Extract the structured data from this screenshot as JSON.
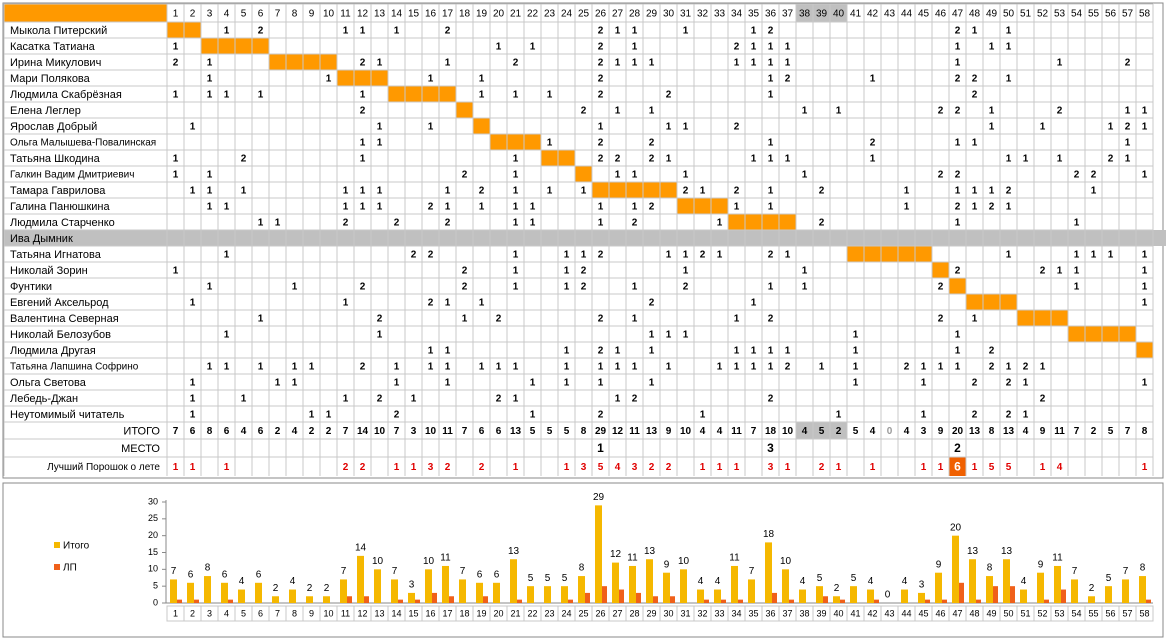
{
  "table": {
    "columns": [
      1,
      2,
      3,
      4,
      5,
      6,
      7,
      8,
      9,
      10,
      11,
      12,
      13,
      14,
      15,
      16,
      17,
      18,
      19,
      20,
      21,
      22,
      23,
      24,
      25,
      26,
      27,
      28,
      29,
      30,
      31,
      32,
      33,
      34,
      35,
      36,
      37,
      38,
      39,
      40,
      41,
      42,
      43,
      44,
      45,
      46,
      47,
      48,
      49,
      50,
      51,
      52,
      53,
      54,
      55,
      56,
      57,
      58
    ],
    "own_color": "#ff9900",
    "rows": [
      {
        "name": "Мыкола Питерский",
        "own": [
          1,
          2
        ],
        "votes": {
          "4": 1,
          "6": 2,
          "11": 1,
          "12": 1,
          "14": 1,
          "17": 2,
          "26": 2,
          "27": 1,
          "28": 1,
          "31": 1,
          "35": 1,
          "36": 2,
          "47": 2,
          "48": 1,
          "50": 1
        }
      },
      {
        "name": "Касатка Татиана",
        "own": [
          3,
          6
        ],
        "votes": {
          "1": 1,
          "20": 1,
          "22": 1,
          "26": 2,
          "28": 1,
          "34": 2,
          "35": 1,
          "36": 1,
          "37": 1,
          "47": 1,
          "49": 1,
          "50": 1
        }
      },
      {
        "name": "Ирина Микулович",
        "own": [
          7,
          10
        ],
        "votes": {
          "1": 2,
          "3": 1,
          "12": 2,
          "13": 1,
          "17": 1,
          "21": 2,
          "26": 2,
          "27": 1,
          "28": 1,
          "29": 1,
          "34": 1,
          "35": 1,
          "36": 1,
          "37": 1,
          "47": 1,
          "53": 1,
          "57": 2
        }
      },
      {
        "name": "Мари Полякова",
        "own": [
          11,
          13
        ],
        "votes": {
          "3": 1,
          "10": 1,
          "16": 1,
          "19": 1,
          "26": 2,
          "36": 1,
          "37": 2,
          "42": 1,
          "47": 2,
          "48": 2,
          "50": 1
        }
      },
      {
        "name": "Людмила Скабрёзная",
        "own": [
          14,
          17
        ],
        "votes": {
          "1": 1,
          "3": 1,
          "4": 1,
          "6": 1,
          "12": 1,
          "19": 1,
          "21": 1,
          "23": 1,
          "26": 2,
          "30": 2,
          "36": 1,
          "48": 2
        }
      },
      {
        "name": "Елена Леглер",
        "own": [
          18,
          18
        ],
        "votes": {
          "12": 2,
          "25": 2,
          "27": 1,
          "29": 1,
          "38": 1,
          "40": 1,
          "46": 2,
          "47": 2,
          "49": 1,
          "53": 2,
          "57": 1,
          "58": 1
        }
      },
      {
        "name": "Ярослав Добрый",
        "own": [
          19,
          19
        ],
        "votes": {
          "2": 1,
          "13": 1,
          "16": 1,
          "26": 1,
          "30": 1,
          "31": 1,
          "34": 2,
          "49": 1,
          "52": 1,
          "56": 1,
          "57": 2,
          "58": 1
        }
      },
      {
        "name": "Ольга Малышева-Повалинская",
        "own": [
          20,
          22
        ],
        "votes": {
          "12": 1,
          "13": 1,
          "23": 1,
          "26": 2,
          "29": 2,
          "36": 1,
          "42": 2,
          "47": 1,
          "48": 1,
          "57": 1
        }
      },
      {
        "name": "Татьяна Шкодина",
        "own": [
          23,
          24
        ],
        "votes": {
          "1": 1,
          "5": 2,
          "12": 1,
          "21": 1,
          "26": 2,
          "27": 2,
          "29": 2,
          "30": 1,
          "35": 1,
          "36": 1,
          "37": 1,
          "42": 1,
          "50": 1,
          "51": 1,
          "53": 1,
          "56": 2,
          "57": 1
        }
      },
      {
        "name": "Галкин Вадим Дмитриевич",
        "own": [
          25,
          25
        ],
        "votes": {
          "1": 1,
          "3": 1,
          "18": 2,
          "21": 1,
          "27": 1,
          "28": 1,
          "31": 1,
          "38": 1,
          "46": 2,
          "47": 2,
          "54": 2,
          "55": 2,
          "58": 1
        }
      },
      {
        "name": "Тамара Гаврилова",
        "own": [
          26,
          30
        ],
        "votes": {
          "2": 1,
          "3": 1,
          "5": 1,
          "11": 1,
          "12": 1,
          "13": 1,
          "17": 1,
          "19": 2,
          "21": 1,
          "23": 1,
          "25": 1,
          "31": 2,
          "32": 1,
          "34": 2,
          "36": 1,
          "39": 2,
          "44": 1,
          "47": 1,
          "48": 1,
          "49": 1,
          "50": 2,
          "55": 1
        }
      },
      {
        "name": "Галина Панюшкина",
        "own": [
          31,
          33
        ],
        "votes": {
          "3": 1,
          "4": 1,
          "11": 1,
          "12": 1,
          "13": 1,
          "16": 2,
          "17": 1,
          "19": 1,
          "21": 1,
          "22": 1,
          "26": 1,
          "28": 1,
          "29": 2,
          "34": 1,
          "36": 1,
          "44": 1,
          "47": 2,
          "48": 1,
          "49": 2,
          "50": 1
        }
      },
      {
        "name": "Людмила Старченко",
        "own": [
          34,
          37
        ],
        "votes": {
          "6": 1,
          "7": 1,
          "11": 2,
          "14": 2,
          "17": 2,
          "21": 1,
          "22": 1,
          "26": 1,
          "28": 2,
          "33": 1,
          "39": 2,
          "47": 1,
          "54": 1
        }
      },
      {
        "name": "Ива Дымник",
        "own": [
          38,
          40
        ],
        "color": "#c0c0c0",
        "votes": {}
      },
      {
        "name": "Татьяна Игнатова",
        "own": [
          41,
          45
        ],
        "votes": {
          "4": 1,
          "15": 2,
          "16": 2,
          "21": 1,
          "24": 1,
          "25": 1,
          "26": 2,
          "30": 1,
          "31": 1,
          "32": 2,
          "33": 1,
          "36": 2,
          "37": 1,
          "50": 1,
          "54": 1,
          "55": 1,
          "56": 1,
          "58": 1
        }
      },
      {
        "name": "Николай Зорин",
        "own": [
          46,
          46
        ],
        "votes": {
          "1": 1,
          "18": 2,
          "21": 1,
          "24": 1,
          "25": 2,
          "31": 1,
          "38": 1,
          "47": 2,
          "52": 2,
          "53": 1,
          "54": 1,
          "58": 1
        }
      },
      {
        "name": "Фунтики",
        "own": [
          47,
          47
        ],
        "votes": {
          "3": 1,
          "8": 1,
          "12": 2,
          "18": 2,
          "21": 1,
          "24": 1,
          "25": 2,
          "28": 1,
          "31": 2,
          "36": 1,
          "38": 1,
          "46": 2,
          "54": 1,
          "58": 1
        }
      },
      {
        "name": "Евгений Аксельрод",
        "own": [
          48,
          50
        ],
        "votes": {
          "2": 1,
          "11": 1,
          "16": 2,
          "17": 1,
          "19": 1,
          "29": 2,
          "35": 1,
          "58": 1
        }
      },
      {
        "name": "Валентина Северная",
        "own": [
          51,
          53
        ],
        "votes": {
          "6": 1,
          "13": 2,
          "18": 1,
          "20": 2,
          "26": 2,
          "28": 1,
          "34": 1,
          "36": 2,
          "46": 2,
          "48": 1
        }
      },
      {
        "name": "Николай Белозубов",
        "own": [
          54,
          57
        ],
        "votes": {
          "4": 1,
          "13": 1,
          "29": 1,
          "30": 1,
          "31": 1,
          "41": 1,
          "47": 1
        }
      },
      {
        "name": "Людмила Другая",
        "own": [
          58,
          58
        ],
        "votes": {
          "16": 1,
          "17": 1,
          "24": 1,
          "26": 2,
          "27": 1,
          "29": 1,
          "34": 1,
          "35": 1,
          "36": 1,
          "37": 1,
          "41": 1,
          "47": 1,
          "49": 2
        }
      },
      {
        "name": "Татьяна Лапшина Софрино",
        "votes": {
          "3": 1,
          "4": 1,
          "6": 1,
          "8": 1,
          "9": 1,
          "12": 2,
          "14": 1,
          "16": 1,
          "17": 1,
          "19": 1,
          "20": 1,
          "21": 1,
          "24": 1,
          "26": 1,
          "27": 1,
          "28": 1,
          "30": 1,
          "33": 1,
          "34": 1,
          "35": 1,
          "36": 1,
          "37": 2,
          "39": 1,
          "41": 1,
          "44": 2,
          "45": 1,
          "46": 1,
          "47": 1,
          "49": 2,
          "50": 1,
          "51": 2,
          "52": 1
        }
      },
      {
        "name": "Ольга Светова",
        "votes": {
          "2": 1,
          "7": 1,
          "8": 1,
          "14": 1,
          "17": 1,
          "22": 1,
          "24": 1,
          "26": 1,
          "29": 1,
          "41": 1,
          "45": 1,
          "48": 2,
          "50": 2,
          "51": 1,
          "58": 1
        }
      },
      {
        "name": "Лебедь-Джан",
        "votes": {
          "2": 1,
          "5": 1,
          "11": 1,
          "13": 2,
          "15": 1,
          "20": 2,
          "21": 1,
          "27": 1,
          "28": 2,
          "36": 2,
          "52": 2
        }
      },
      {
        "name": "Неутомимый читатель",
        "votes": {
          "2": 1,
          "9": 1,
          "10": 1,
          "14": 2,
          "22": 1,
          "26": 2,
          "32": 1,
          "40": 1,
          "45": 1,
          "48": 2,
          "50": 2,
          "51": 1
        }
      }
    ],
    "totals": {
      "label": "ИТОГО",
      "values": [
        7,
        6,
        8,
        6,
        4,
        6,
        2,
        4,
        2,
        2,
        7,
        14,
        10,
        7,
        3,
        10,
        11,
        7,
        6,
        6,
        13,
        5,
        5,
        5,
        8,
        29,
        12,
        11,
        13,
        9,
        10,
        4,
        4,
        11,
        7,
        18,
        10,
        4,
        5,
        2,
        5,
        4,
        0,
        4,
        3,
        9,
        20,
        13,
        8,
        13,
        4,
        9,
        11,
        7,
        2,
        5,
        7,
        8
      ]
    },
    "place": {
      "label": "МЕСТО",
      "values": {
        "26": 1,
        "36": 3,
        "47": 2
      }
    },
    "best": {
      "label": "Лучший Порошок о лете",
      "values": {
        "1": 1,
        "2": 1,
        "4": 1,
        "11": 2,
        "12": 2,
        "14": 1,
        "15": 1,
        "16": 3,
        "17": 2,
        "19": 2,
        "21": 1,
        "24": 1,
        "25": 3,
        "26": 5,
        "27": 4,
        "28": 3,
        "29": 2,
        "30": 2,
        "32": 1,
        "33": 1,
        "34": 1,
        "36": 3,
        "37": 1,
        "39": 2,
        "40": 1,
        "42": 1,
        "45": 1,
        "46": 1,
        "47": 6,
        "48": 1,
        "49": 5,
        "50": 5,
        "52": 1,
        "53": 4,
        "58": 1
      }
    }
  },
  "chart_data": {
    "type": "bar",
    "categories": [
      1,
      2,
      3,
      4,
      5,
      6,
      7,
      8,
      9,
      10,
      11,
      12,
      13,
      14,
      15,
      16,
      17,
      18,
      19,
      20,
      21,
      22,
      23,
      24,
      25,
      26,
      27,
      28,
      29,
      30,
      31,
      32,
      33,
      34,
      35,
      36,
      37,
      38,
      39,
      40,
      41,
      42,
      43,
      44,
      45,
      46,
      47,
      48,
      49,
      50,
      51,
      52,
      53,
      54,
      55,
      56,
      57,
      58
    ],
    "ylim": [
      0,
      30
    ],
    "yticks": [
      0,
      5,
      10,
      15,
      20,
      25,
      30
    ],
    "series": [
      {
        "name": "Итого",
        "color": "#f5b800",
        "values": [
          7,
          6,
          8,
          6,
          4,
          6,
          2,
          4,
          2,
          2,
          7,
          14,
          10,
          7,
          3,
          10,
          11,
          7,
          6,
          6,
          13,
          5,
          5,
          5,
          8,
          29,
          12,
          11,
          13,
          9,
          10,
          4,
          4,
          11,
          7,
          18,
          10,
          4,
          5,
          2,
          5,
          4,
          0,
          4,
          3,
          9,
          20,
          13,
          8,
          13,
          4,
          9,
          11,
          7,
          2,
          5,
          7,
          8
        ]
      },
      {
        "name": "ЛП",
        "color": "#f0601a",
        "values": [
          1,
          1,
          0,
          1,
          0,
          0,
          0,
          0,
          0,
          0,
          2,
          2,
          0,
          1,
          1,
          3,
          2,
          0,
          2,
          0,
          1,
          0,
          0,
          1,
          3,
          5,
          4,
          3,
          2,
          2,
          0,
          1,
          1,
          1,
          0,
          3,
          1,
          0,
          2,
          1,
          0,
          1,
          0,
          0,
          1,
          1,
          6,
          1,
          5,
          5,
          0,
          1,
          4,
          0,
          0,
          0,
          0,
          1
        ]
      }
    ]
  }
}
